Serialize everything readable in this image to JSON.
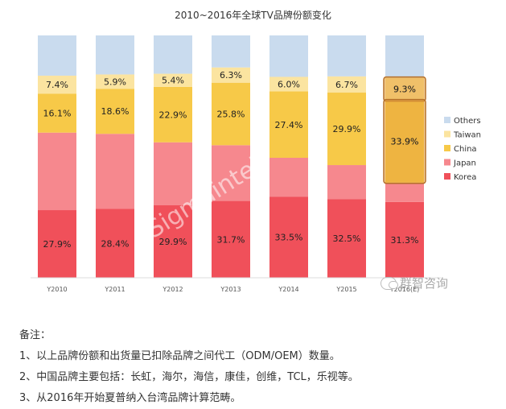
{
  "chart_data": {
    "type": "bar",
    "stacked": true,
    "title": "2010~2016年全球TV品牌份额变化",
    "categories": [
      "Y2010",
      "Y2011",
      "Y2012",
      "Y2013",
      "Y2014",
      "Y2015",
      "Y2016(E)"
    ],
    "ylim": [
      0,
      100
    ],
    "series": [
      {
        "name": "Korea",
        "color": "#f0505a",
        "values": [
          27.9,
          28.4,
          29.9,
          31.7,
          33.5,
          32.5,
          31.3
        ],
        "labels": [
          "27.9%",
          "28.4%",
          "29.9%",
          "31.7%",
          "33.5%",
          "32.5%",
          "31.3%"
        ]
      },
      {
        "name": "Japan",
        "color": "#f6888e",
        "values": [
          32.0,
          31.0,
          26.0,
          23.0,
          16.0,
          14.0,
          8.0
        ],
        "labels": [
          "",
          "",
          "",
          "",
          "",
          "",
          ""
        ]
      },
      {
        "name": "China",
        "color": "#f7c948",
        "values": [
          16.1,
          18.6,
          22.9,
          25.8,
          27.4,
          29.9,
          33.9
        ],
        "labels": [
          "16.1%",
          "18.6%",
          "22.9%",
          "25.8%",
          "27.4%",
          "29.9%",
          "33.9%"
        ]
      },
      {
        "name": "Taiwan",
        "color": "#fbe4a0",
        "values": [
          7.4,
          5.9,
          5.4,
          6.3,
          6.0,
          6.7,
          9.3
        ],
        "labels": [
          "7.4%",
          "5.9%",
          "5.4%",
          "6.3%",
          "6.0%",
          "6.7%",
          "9.3%"
        ]
      },
      {
        "name": "Others",
        "color": "#c9dbee",
        "values": [
          16.6,
          16.1,
          15.8,
          13.2,
          17.1,
          16.9,
          17.5
        ],
        "labels": [
          "",
          "",
          "",
          "",
          "",
          "",
          ""
        ]
      }
    ],
    "legend": {
      "position": "right",
      "order": [
        "Others",
        "Taiwan",
        "China",
        "Japan",
        "Korea"
      ]
    },
    "highlight": {
      "category": "Y2016(E)",
      "series": [
        "Taiwan",
        "China"
      ],
      "color": "#e8a33d"
    },
    "watermark": "Sigmaintell",
    "grid": false
  },
  "brand": {
    "name": "群智咨询"
  },
  "notes": {
    "heading": "备注：",
    "items": [
      "1、以上品牌份额和出货量已扣除品牌之间代工（ODM/OEM）数量。",
      "2、中国品牌主要包括：长虹，海尔，海信，康佳，创维，TCL，乐视等。",
      "3、从2016年开始夏普纳入台湾品牌计算范畴。"
    ]
  }
}
